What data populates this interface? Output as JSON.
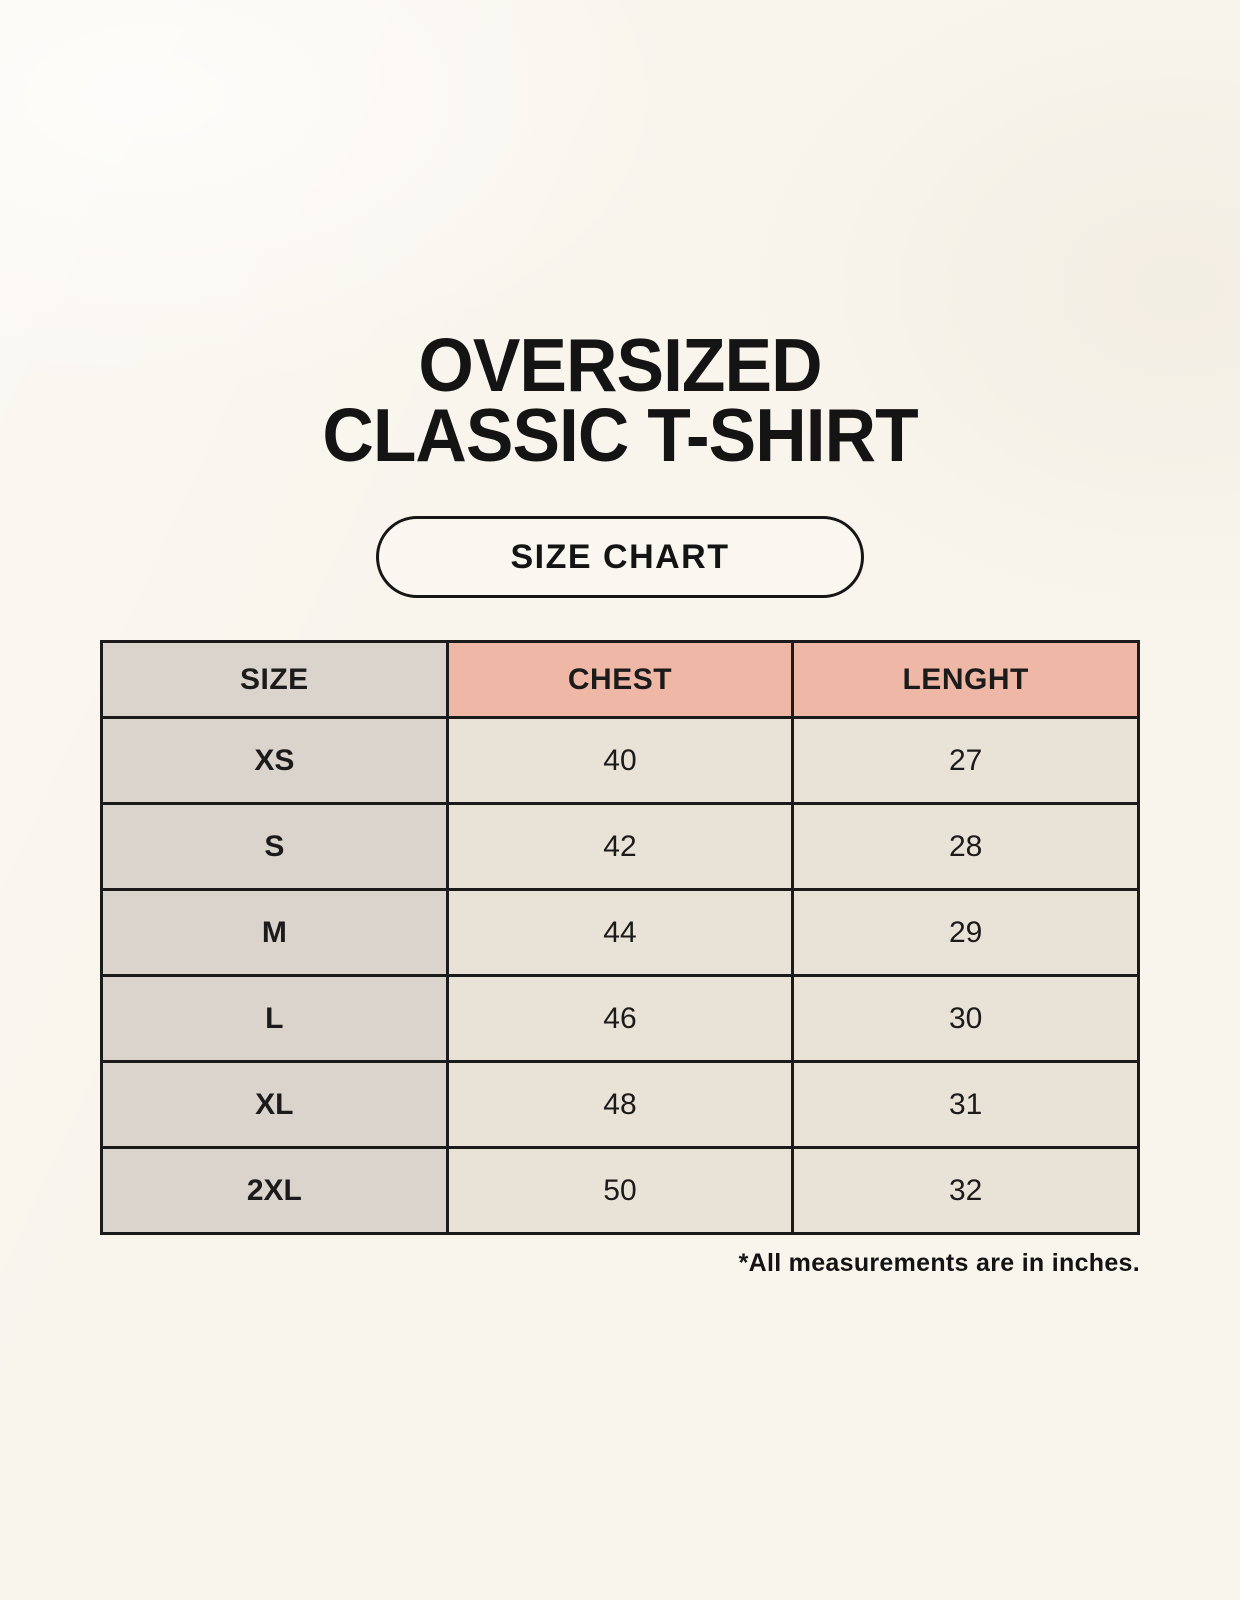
{
  "page": {
    "title_line1": "OVERSIZED",
    "title_line2": "CLASSIC T-SHIRT",
    "badge_label": "SIZE CHART",
    "footnote": "*All measurements are in inches."
  },
  "table": {
    "headers": {
      "size": "SIZE",
      "chest": "CHEST",
      "length": "LENGHT"
    },
    "rows": [
      {
        "size": "XS",
        "chest": "40",
        "length": "27"
      },
      {
        "size": "S",
        "chest": "42",
        "length": "28"
      },
      {
        "size": "M",
        "chest": "44",
        "length": "29"
      },
      {
        "size": "L",
        "chest": "46",
        "length": "30"
      },
      {
        "size": "XL",
        "chest": "48",
        "length": "31"
      },
      {
        "size": "2XL",
        "chest": "50",
        "length": "32"
      }
    ]
  },
  "colors": {
    "background": "#f9f5ed",
    "label_column_bg": "#dbd4cd",
    "accent_header_bg": "#efb8a6",
    "value_cell_bg": "#e9e2d6",
    "border": "#1b1b1b",
    "text": "#141414"
  },
  "chart_data": {
    "type": "table",
    "title": "OVERSIZED CLASSIC T-SHIRT",
    "subtitle": "SIZE CHART",
    "columns": [
      "SIZE",
      "CHEST",
      "LENGHT"
    ],
    "rows": [
      [
        "XS",
        40,
        27
      ],
      [
        "S",
        42,
        28
      ],
      [
        "M",
        44,
        29
      ],
      [
        "L",
        46,
        30
      ],
      [
        "XL",
        48,
        31
      ],
      [
        "2XL",
        50,
        32
      ]
    ],
    "note": "*All measurements are in inches.",
    "units": "inches",
    "layout_hints": {
      "header_accent_columns": [
        "CHEST",
        "LENGHT"
      ],
      "label_column_shaded": true,
      "grid": true
    }
  }
}
